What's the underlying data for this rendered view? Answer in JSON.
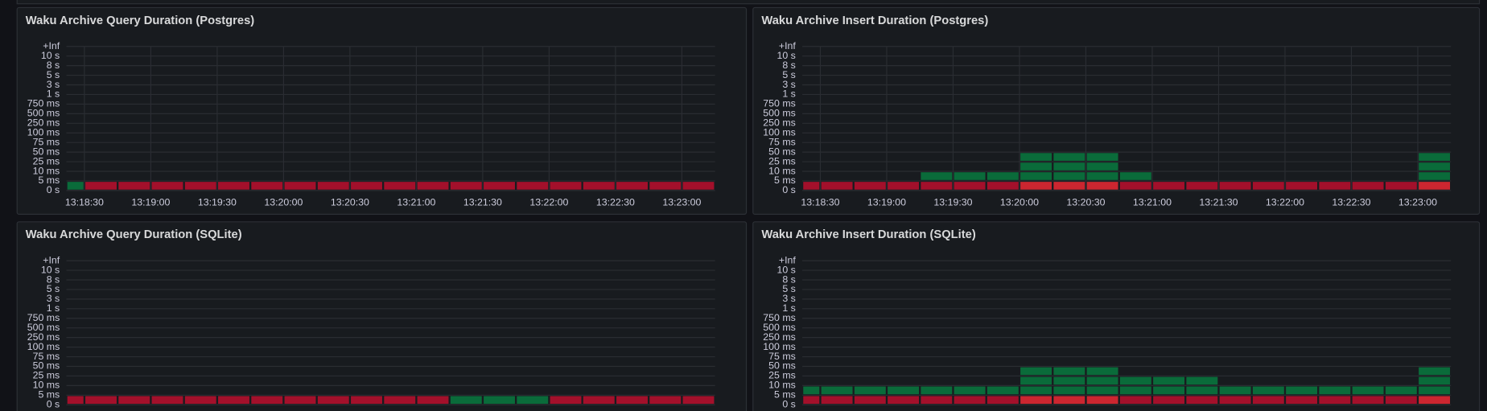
{
  "chart_data": [
    {
      "type": "heatmap",
      "title": "Waku Archive Query Duration (Postgres)",
      "yticks": [
        "0 s",
        "5 ms",
        "10 ms",
        "25 ms",
        "50 ms",
        "75 ms",
        "100 ms",
        "250 ms",
        "500 ms",
        "750 ms",
        "1 s",
        "3 s",
        "5 s",
        "8 s",
        "10 s",
        "+Inf"
      ],
      "xticks": [
        "13:18:30",
        "13:19:00",
        "13:19:30",
        "13:20:00",
        "13:20:30",
        "13:21:00",
        "13:21:30",
        "13:22:00",
        "13:22:30",
        "13:23:00"
      ],
      "color_stops": [
        {
          "value": 1,
          "color": "#0a6b3a"
        },
        {
          "value": 8,
          "color": "#a3102b"
        },
        {
          "value": 10,
          "color": "#cc2630"
        }
      ],
      "cells": [
        [
          1,
          8,
          8,
          8,
          8,
          8,
          8,
          8,
          8,
          8,
          8,
          8,
          8,
          8,
          8,
          8,
          8,
          8,
          8,
          8
        ]
      ]
    },
    {
      "type": "heatmap",
      "title": "Waku Archive Insert Duration (Postgres)",
      "yticks": [
        "0 s",
        "5 ms",
        "10 ms",
        "25 ms",
        "50 ms",
        "75 ms",
        "100 ms",
        "250 ms",
        "500 ms",
        "750 ms",
        "1 s",
        "3 s",
        "5 s",
        "8 s",
        "10 s",
        "+Inf"
      ],
      "xticks": [
        "13:18:30",
        "13:19:00",
        "13:19:30",
        "13:20:00",
        "13:20:30",
        "13:21:00",
        "13:21:30",
        "13:22:00",
        "13:22:30",
        "13:23:00"
      ],
      "color_stops": [
        {
          "value": 1,
          "color": "#0a6b3a"
        },
        {
          "value": 8,
          "color": "#a3102b"
        },
        {
          "value": 10,
          "color": "#cc2630"
        }
      ],
      "cells": [
        [
          8,
          8,
          8,
          8,
          8,
          8,
          8,
          10,
          10,
          10,
          8,
          8,
          8,
          8,
          8,
          8,
          8,
          8,
          8,
          10
        ],
        [
          null,
          null,
          null,
          null,
          1,
          1,
          1,
          1,
          1,
          1,
          1,
          null,
          null,
          null,
          null,
          null,
          null,
          null,
          null,
          1
        ],
        [
          null,
          null,
          null,
          null,
          null,
          null,
          null,
          1,
          1,
          1,
          null,
          null,
          null,
          null,
          null,
          null,
          null,
          null,
          null,
          1
        ],
        [
          null,
          null,
          null,
          null,
          null,
          null,
          null,
          1,
          1,
          1,
          null,
          null,
          null,
          null,
          null,
          null,
          null,
          null,
          null,
          1
        ]
      ]
    },
    {
      "type": "heatmap",
      "title": "Waku Archive Query Duration (SQLite)",
      "yticks": [
        "0 s",
        "5 ms",
        "10 ms",
        "25 ms",
        "50 ms",
        "75 ms",
        "100 ms",
        "250 ms",
        "500 ms",
        "750 ms",
        "1 s",
        "3 s",
        "5 s",
        "8 s",
        "10 s",
        "+Inf"
      ],
      "color_stops": [
        {
          "value": 1,
          "color": "#0a6b3a"
        },
        {
          "value": 8,
          "color": "#a3102b"
        },
        {
          "value": 10,
          "color": "#cc2630"
        }
      ],
      "cells": [
        [
          8,
          8,
          8,
          8,
          8,
          8,
          8,
          8,
          8,
          8,
          8,
          8,
          1,
          1,
          1,
          8,
          8,
          8,
          8,
          8
        ]
      ]
    },
    {
      "type": "heatmap",
      "title": "Waku Archive Insert Duration (SQLite)",
      "yticks": [
        "0 s",
        "5 ms",
        "10 ms",
        "25 ms",
        "50 ms",
        "75 ms",
        "100 ms",
        "250 ms",
        "500 ms",
        "750 ms",
        "1 s",
        "3 s",
        "5 s",
        "8 s",
        "10 s",
        "+Inf"
      ],
      "color_stops": [
        {
          "value": 1,
          "color": "#0a6b3a"
        },
        {
          "value": 8,
          "color": "#a3102b"
        },
        {
          "value": 10,
          "color": "#cc2630"
        }
      ],
      "cells": [
        [
          8,
          8,
          8,
          8,
          8,
          8,
          8,
          10,
          10,
          10,
          8,
          8,
          8,
          8,
          8,
          8,
          8,
          8,
          8,
          10
        ],
        [
          1,
          1,
          1,
          1,
          1,
          1,
          1,
          1,
          1,
          1,
          1,
          1,
          1,
          1,
          1,
          1,
          1,
          1,
          1,
          1
        ],
        [
          null,
          null,
          null,
          null,
          null,
          null,
          null,
          1,
          1,
          1,
          1,
          1,
          1,
          null,
          null,
          null,
          null,
          null,
          null,
          1
        ],
        [
          null,
          null,
          null,
          null,
          null,
          null,
          null,
          1,
          1,
          1,
          null,
          null,
          null,
          null,
          null,
          null,
          null,
          null,
          null,
          1
        ]
      ]
    }
  ]
}
